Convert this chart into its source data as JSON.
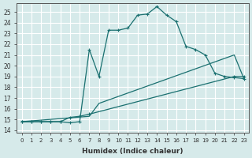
{
  "xlabel": "Humidex (Indice chaleur)",
  "background_color": "#d6eaea",
  "line_color": "#1a7070",
  "grid_color": "#ffffff",
  "line1_x": [
    0,
    1,
    2,
    3,
    4,
    5,
    6,
    7,
    8,
    9,
    10,
    11,
    12,
    13,
    14,
    15,
    16,
    17,
    18,
    19,
    20,
    21,
    22,
    23
  ],
  "line1_y": [
    14.8,
    14.8,
    14.8,
    14.8,
    14.8,
    14.7,
    14.8,
    21.5,
    19.0,
    23.3,
    23.3,
    23.5,
    24.7,
    24.8,
    25.5,
    24.7,
    24.1,
    21.8,
    21.5,
    21.0,
    19.3,
    19.0,
    18.9,
    18.8
  ],
  "line2_x": [
    0,
    1,
    2,
    3,
    4,
    5,
    6,
    7,
    22,
    23
  ],
  "line2_y": [
    14.8,
    14.8,
    14.8,
    14.8,
    14.8,
    15.2,
    15.3,
    15.5,
    19.0,
    19.0
  ],
  "line3_x": [
    0,
    7,
    8,
    22,
    23
  ],
  "line3_y": [
    14.8,
    15.3,
    16.5,
    21.0,
    18.8
  ],
  "xlim": [
    -0.5,
    23.5
  ],
  "ylim": [
    13.8,
    25.8
  ]
}
